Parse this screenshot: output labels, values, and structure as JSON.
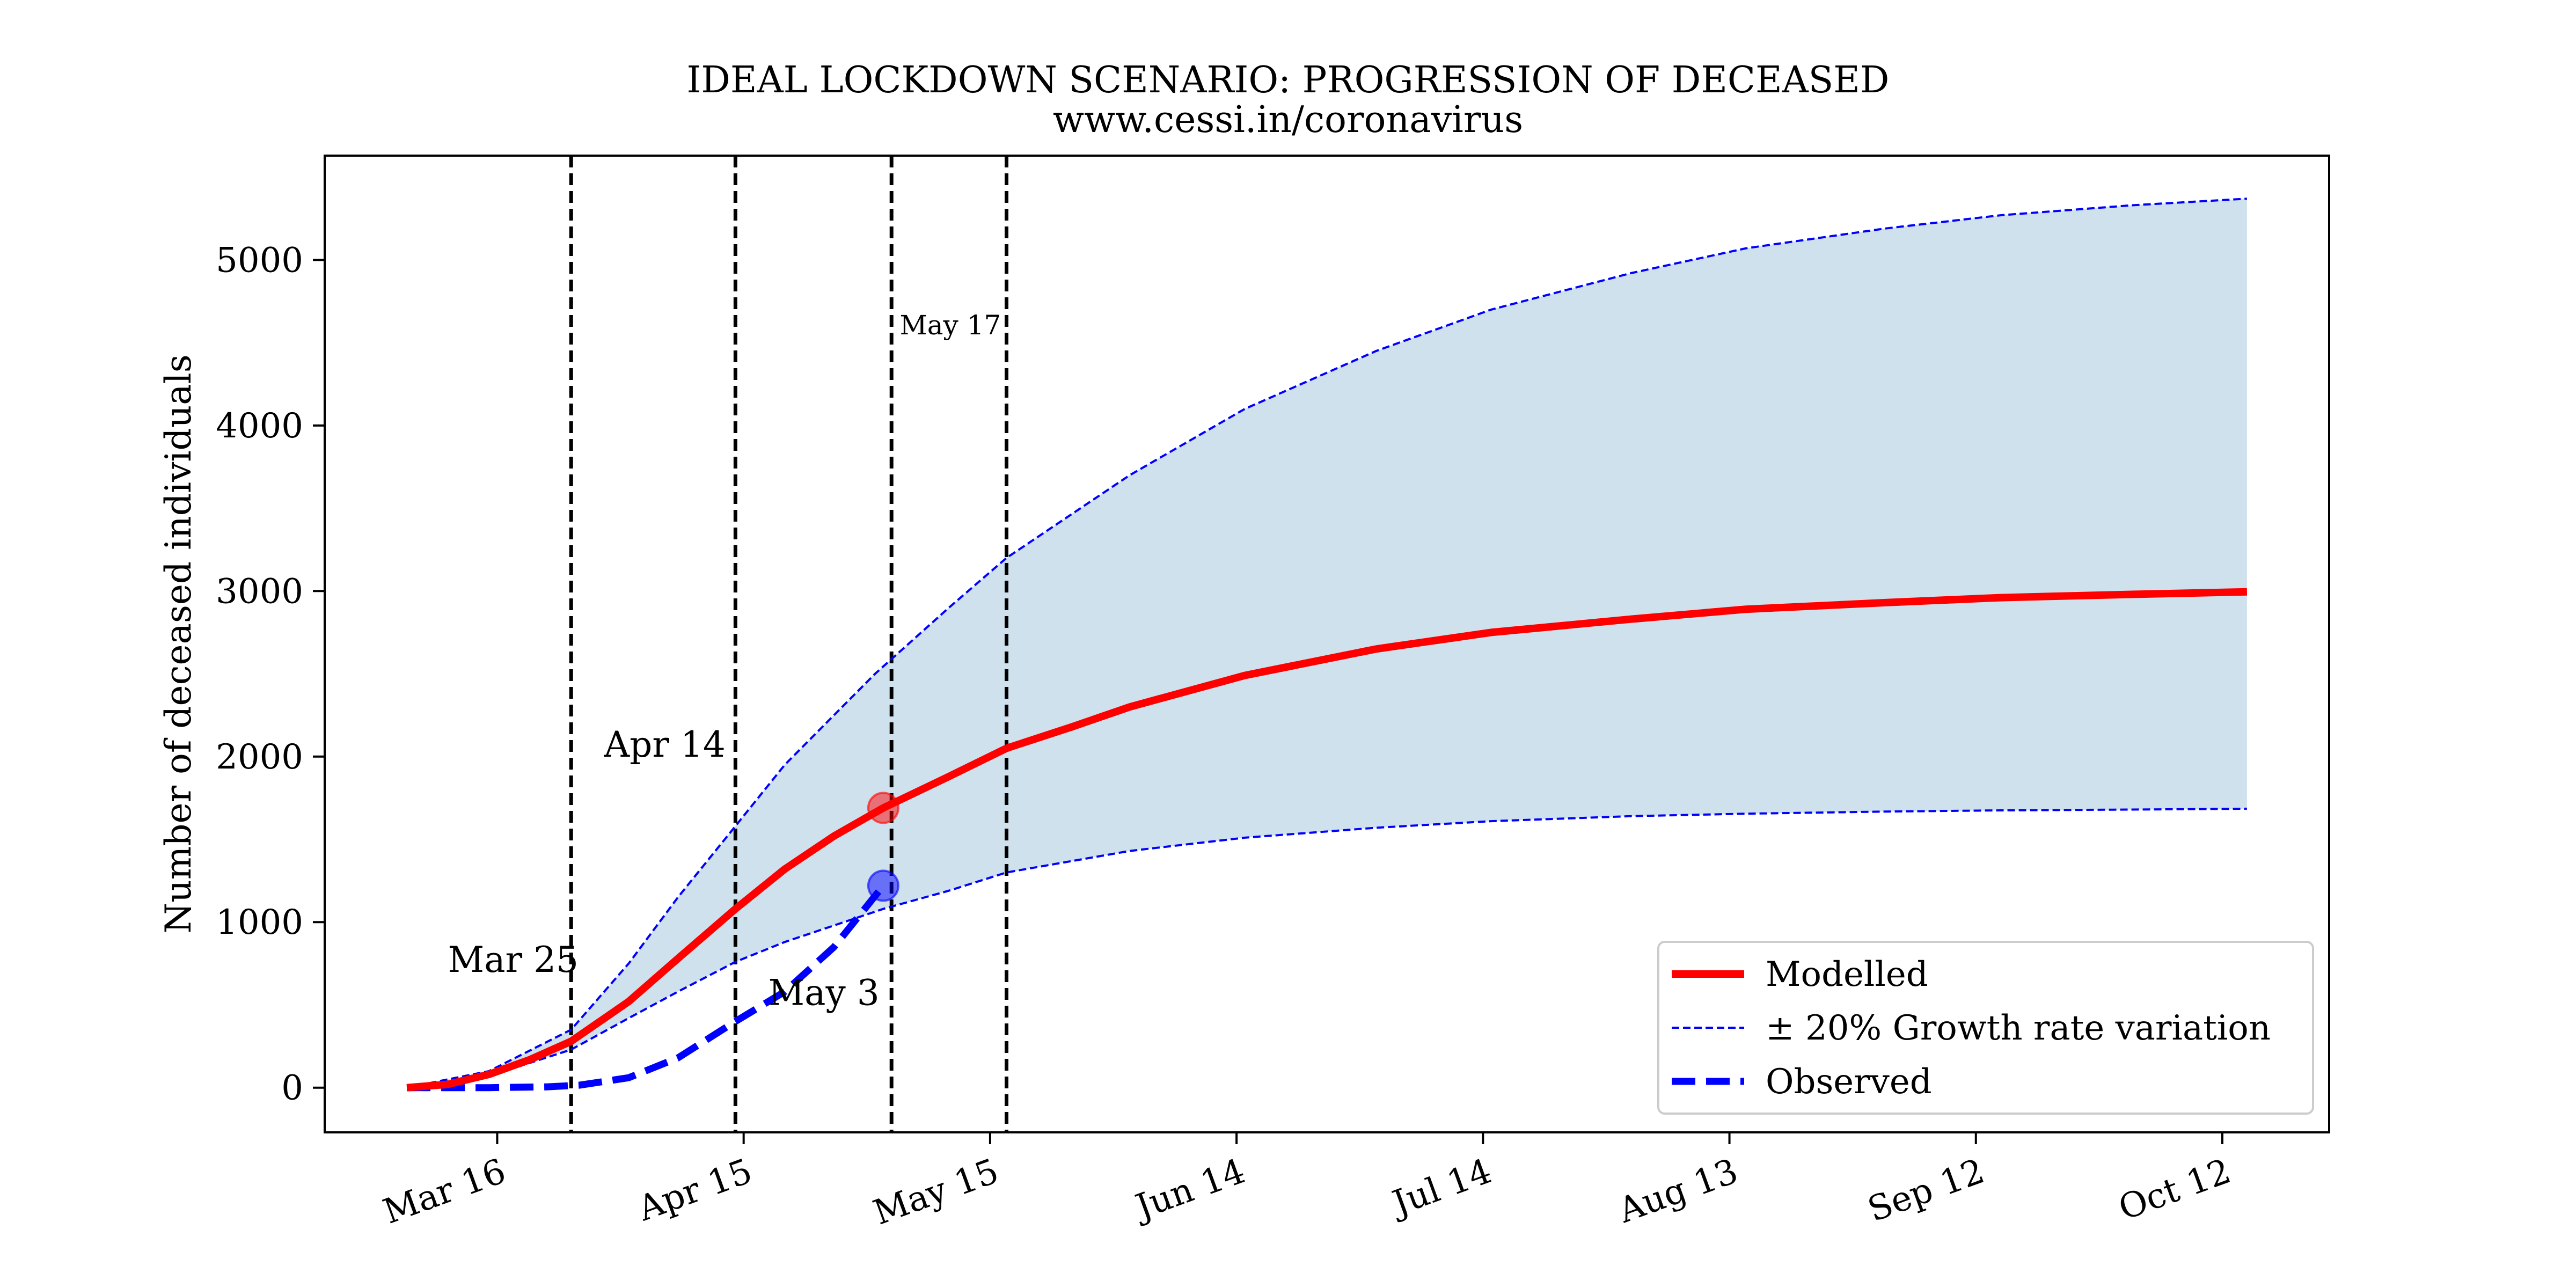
{
  "chart_data": {
    "type": "line",
    "title": "IDEAL LOCKDOWN SCENARIO: PROGRESSION OF DECEASED",
    "subtitle": "www.cessi.in/coronavirus",
    "xlabel": "",
    "ylabel": "Number of deceased individuals",
    "xlim": [
      "2020-02-24",
      "2020-10-25"
    ],
    "ylim": [
      -270,
      5630
    ],
    "x_ticks": [
      {
        "date": "2020-03-16",
        "label": "Mar 16"
      },
      {
        "date": "2020-04-15",
        "label": "Apr 15"
      },
      {
        "date": "2020-05-15",
        "label": "May 15"
      },
      {
        "date": "2020-06-14",
        "label": "Jun 14"
      },
      {
        "date": "2020-07-14",
        "label": "Jul 14"
      },
      {
        "date": "2020-08-13",
        "label": "Aug 13"
      },
      {
        "date": "2020-09-12",
        "label": "Sep 12"
      },
      {
        "date": "2020-10-12",
        "label": "Oct 12"
      }
    ],
    "y_ticks": [
      0,
      1000,
      2000,
      3000,
      4000,
      5000
    ],
    "grid": false,
    "legend": "lower-right",
    "colors": {
      "modelled": "#ff0000",
      "variation": "#0000ff",
      "observed": "#0000ff",
      "band_fill": "#d0e1ee",
      "lockdown_lines": "#000000"
    },
    "series": [
      {
        "name": "Modelled",
        "style": "solid",
        "points": [
          [
            "2020-03-05",
            0
          ],
          [
            "2020-03-10",
            20
          ],
          [
            "2020-03-15",
            80
          ],
          [
            "2020-03-20",
            170
          ],
          [
            "2020-03-25",
            280
          ],
          [
            "2020-04-01",
            520
          ],
          [
            "2020-04-07",
            780
          ],
          [
            "2020-04-14",
            1080
          ],
          [
            "2020-04-20",
            1320
          ],
          [
            "2020-04-26",
            1520
          ],
          [
            "2020-05-02",
            1690
          ],
          [
            "2020-05-10",
            1880
          ],
          [
            "2020-05-17",
            2050
          ],
          [
            "2020-05-25",
            2180
          ],
          [
            "2020-06-01",
            2300
          ],
          [
            "2020-06-15",
            2490
          ],
          [
            "2020-07-01",
            2650
          ],
          [
            "2020-07-15",
            2750
          ],
          [
            "2020-08-01",
            2830
          ],
          [
            "2020-08-15",
            2890
          ],
          [
            "2020-09-01",
            2930
          ],
          [
            "2020-09-15",
            2960
          ],
          [
            "2020-10-01",
            2980
          ],
          [
            "2020-10-15",
            2995
          ]
        ]
      },
      {
        "name": "± 20% Growth rate variation",
        "style": "dashed-thin",
        "upper": [
          [
            "2020-03-05",
            0
          ],
          [
            "2020-03-15",
            100
          ],
          [
            "2020-03-25",
            350
          ],
          [
            "2020-04-01",
            750
          ],
          [
            "2020-04-07",
            1150
          ],
          [
            "2020-04-14",
            1580
          ],
          [
            "2020-04-20",
            1950
          ],
          [
            "2020-05-01",
            2500
          ],
          [
            "2020-05-10",
            2900
          ],
          [
            "2020-05-17",
            3200
          ],
          [
            "2020-06-01",
            3700
          ],
          [
            "2020-06-15",
            4100
          ],
          [
            "2020-07-01",
            4450
          ],
          [
            "2020-07-15",
            4700
          ],
          [
            "2020-08-01",
            4920
          ],
          [
            "2020-08-15",
            5070
          ],
          [
            "2020-09-01",
            5190
          ],
          [
            "2020-09-15",
            5270
          ],
          [
            "2020-10-01",
            5330
          ],
          [
            "2020-10-15",
            5370
          ]
        ],
        "lower": [
          [
            "2020-03-05",
            0
          ],
          [
            "2020-03-15",
            70
          ],
          [
            "2020-03-25",
            230
          ],
          [
            "2020-04-01",
            420
          ],
          [
            "2020-04-07",
            580
          ],
          [
            "2020-04-14",
            760
          ],
          [
            "2020-04-20",
            880
          ],
          [
            "2020-05-02",
            1080
          ],
          [
            "2020-05-10",
            1190
          ],
          [
            "2020-05-17",
            1300
          ],
          [
            "2020-06-01",
            1430
          ],
          [
            "2020-06-15",
            1510
          ],
          [
            "2020-07-01",
            1570
          ],
          [
            "2020-07-15",
            1610
          ],
          [
            "2020-08-01",
            1640
          ],
          [
            "2020-08-15",
            1655
          ],
          [
            "2020-09-01",
            1668
          ],
          [
            "2020-09-15",
            1675
          ],
          [
            "2020-10-01",
            1680
          ],
          [
            "2020-10-15",
            1685
          ]
        ]
      },
      {
        "name": "Observed",
        "style": "dashed-thick",
        "points": [
          [
            "2020-03-05",
            0
          ],
          [
            "2020-03-15",
            0
          ],
          [
            "2020-03-22",
            5
          ],
          [
            "2020-03-26",
            15
          ],
          [
            "2020-04-01",
            60
          ],
          [
            "2020-04-07",
            180
          ],
          [
            "2020-04-14",
            400
          ],
          [
            "2020-04-20",
            580
          ],
          [
            "2020-04-26",
            850
          ],
          [
            "2020-05-02",
            1220
          ]
        ]
      }
    ],
    "markers": [
      {
        "date": "2020-05-02",
        "value": 1690,
        "color": "#ff0000"
      },
      {
        "date": "2020-05-02",
        "value": 1220,
        "color": "#0000ff"
      }
    ],
    "vlines": [
      {
        "date": "2020-03-25"
      },
      {
        "date": "2020-04-14"
      },
      {
        "date": "2020-05-03"
      },
      {
        "date": "2020-05-17"
      }
    ],
    "annotations": [
      {
        "text": "Mar 25",
        "date": "2020-03-10",
        "value": 700
      },
      {
        "text": "Apr 14",
        "date": "2020-03-29",
        "value": 2000
      },
      {
        "text": "May 3",
        "date": "2020-04-18",
        "value": 500
      },
      {
        "text": "May 17",
        "date": "2020-05-04",
        "value": 4550
      }
    ]
  }
}
